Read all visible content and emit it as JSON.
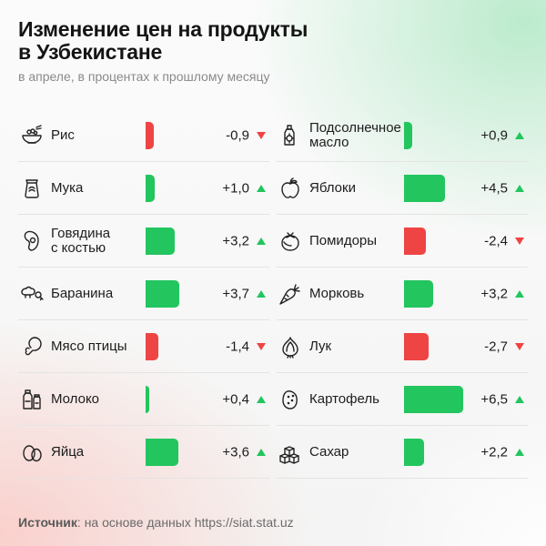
{
  "header": {
    "title": "Изменение цен на продукты\nв Узбекистане",
    "subtitle": "в апреле, в процентах к прошлому месяцу"
  },
  "source": {
    "label": "Источник",
    "text": ": на основе данных https://siat.stat.uz"
  },
  "colors": {
    "positive": "#22c55e",
    "negative": "#ef4444"
  },
  "chart_data": {
    "type": "bar",
    "title": "Изменение цен на продукты в Узбекистане",
    "subtitle": "в апреле, в процентах к прошлому месяцу",
    "max_abs_value": 6.5,
    "columns": [
      {
        "items": [
          {
            "label": "Рис",
            "value": -0.9,
            "display": "-0,9",
            "icon": "rice-bowl-icon"
          },
          {
            "label": "Мука",
            "value": 1.0,
            "display": "+1,0",
            "icon": "flour-sack-icon"
          },
          {
            "label": "Говядина\nс костью",
            "value": 3.2,
            "display": "+3,2",
            "icon": "beef-bone-icon"
          },
          {
            "label": "Баранина",
            "value": 3.7,
            "display": "+3,7",
            "icon": "lamb-icon"
          },
          {
            "label": "Мясо птицы",
            "value": -1.4,
            "display": "-1,4",
            "icon": "chicken-leg-icon"
          },
          {
            "label": "Молоко",
            "value": 0.4,
            "display": "+0,4",
            "icon": "milk-icon"
          },
          {
            "label": "Яйца",
            "value": 3.6,
            "display": "+3,6",
            "icon": "eggs-icon"
          }
        ]
      },
      {
        "items": [
          {
            "label": "Подсолнечное\nмасло",
            "value": 0.9,
            "display": "+0,9",
            "icon": "oil-bottle-icon"
          },
          {
            "label": "Яблоки",
            "value": 4.5,
            "display": "+4,5",
            "icon": "apple-icon"
          },
          {
            "label": "Помидоры",
            "value": -2.4,
            "display": "-2,4",
            "icon": "tomato-icon"
          },
          {
            "label": "Морковь",
            "value": 3.2,
            "display": "+3,2",
            "icon": "carrot-icon"
          },
          {
            "label": "Лук",
            "value": -2.7,
            "display": "-2,7",
            "icon": "onion-icon"
          },
          {
            "label": "Картофель",
            "value": 6.5,
            "display": "+6,5",
            "icon": "potato-icon"
          },
          {
            "label": "Сахар",
            "value": 2.2,
            "display": "+2,2",
            "icon": "sugar-cubes-icon"
          }
        ]
      }
    ]
  }
}
